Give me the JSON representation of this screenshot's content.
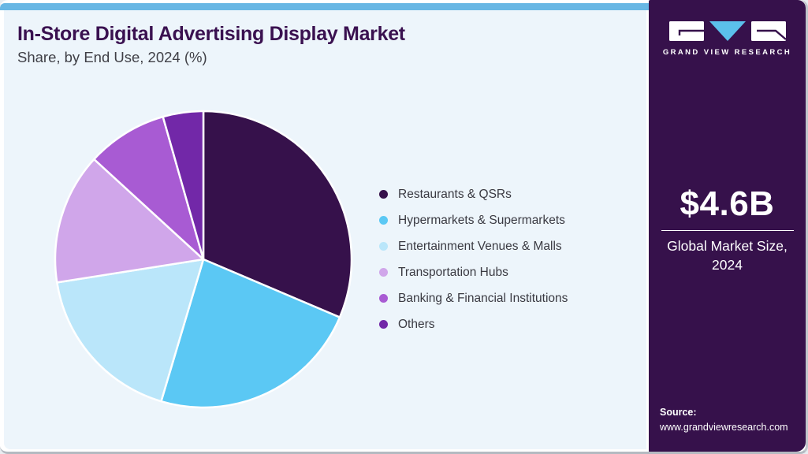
{
  "header": {
    "title": "In-Store Digital Advertising Display Market",
    "subtitle": "Share, by End Use, 2024 (%)"
  },
  "chart_data": {
    "type": "pie",
    "title": "In-Store Digital Advertising Display Market Share, by End Use, 2024 (%)",
    "categories": [
      "Restaurants & QSRs",
      "Hypermarkets & Supermarkets",
      "Entertainment Venues & Malls",
      "Transportation Hubs",
      "Banking & Financial Institutions",
      "Others"
    ],
    "values": [
      31.4,
      23.2,
      17.9,
      14.3,
      8.8,
      4.4
    ],
    "unit": "%",
    "colors": [
      "#36114B",
      "#5BC8F4",
      "#BAE6FA",
      "#D0A6EA",
      "#A85BD3",
      "#7228A8"
    ],
    "start_angle_deg": 0,
    "direction": "clockwise",
    "legend_position": "right",
    "data_labels_shown": false
  },
  "brand": {
    "wordmark": "GRAND VIEW RESEARCH",
    "logo_icon": "gvr-logo"
  },
  "sidebar": {
    "background": "#36114B",
    "market_size_value": "$4.6B",
    "market_size_label_line1": "Global Market Size,",
    "market_size_label_line2": "2024",
    "source_label": "Source:",
    "source_url": "www.grandviewresearch.com"
  },
  "theme": {
    "top_bar": "#68B7E4",
    "panel_bg": "#EDF5FB",
    "title_color": "#3A1150",
    "subtitle_color": "#3F3F46",
    "legend_text_color": "#3A3A42",
    "accent_cyan": "#5BC0EB",
    "slice_stroke": "#FFFFFF"
  }
}
